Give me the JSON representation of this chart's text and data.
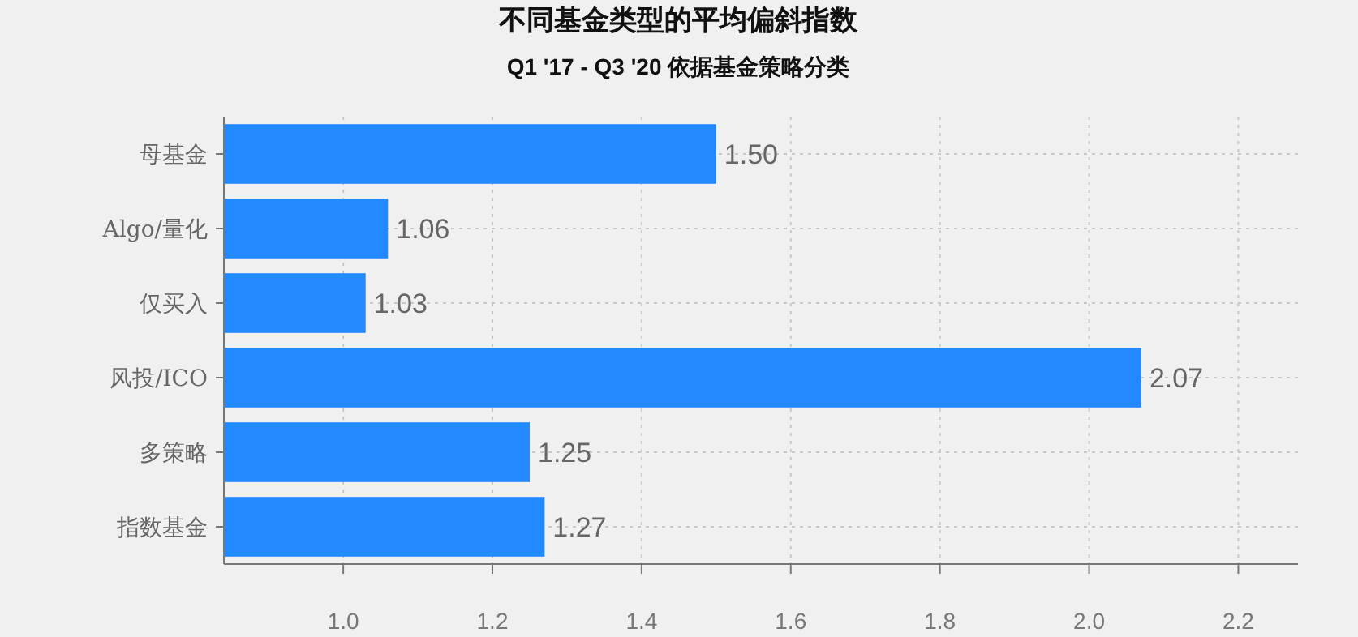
{
  "chart_data": {
    "type": "bar",
    "orientation": "horizontal",
    "title": "不同基金类型的平均偏斜指数",
    "subtitle": "Q1 '17 - Q3 '20 依据基金策略分类",
    "categories": [
      "母基金",
      "Algo/量化",
      "仅买入",
      "风投/ICO",
      "多策略",
      "指数基金"
    ],
    "values": [
      1.5,
      1.06,
      1.03,
      2.07,
      1.25,
      1.27
    ],
    "color": "#2389ff",
    "value_labels": [
      "1.50",
      "1.06",
      "1.03",
      "2.07",
      "1.25",
      "1.27"
    ],
    "xlim": [
      0.84,
      2.28
    ],
    "xticks": [
      {
        "value": 1.0,
        "label": "1.0"
      },
      {
        "value": 1.2,
        "label": "1.2"
      },
      {
        "value": 1.4,
        "label": "1.4"
      },
      {
        "value": 1.6,
        "label": "1.6"
      },
      {
        "value": 1.8,
        "label": "1.8"
      },
      {
        "value": 2.0,
        "label": "2.0"
      },
      {
        "value": 2.2,
        "label": "2.2"
      }
    ],
    "grid": true
  }
}
